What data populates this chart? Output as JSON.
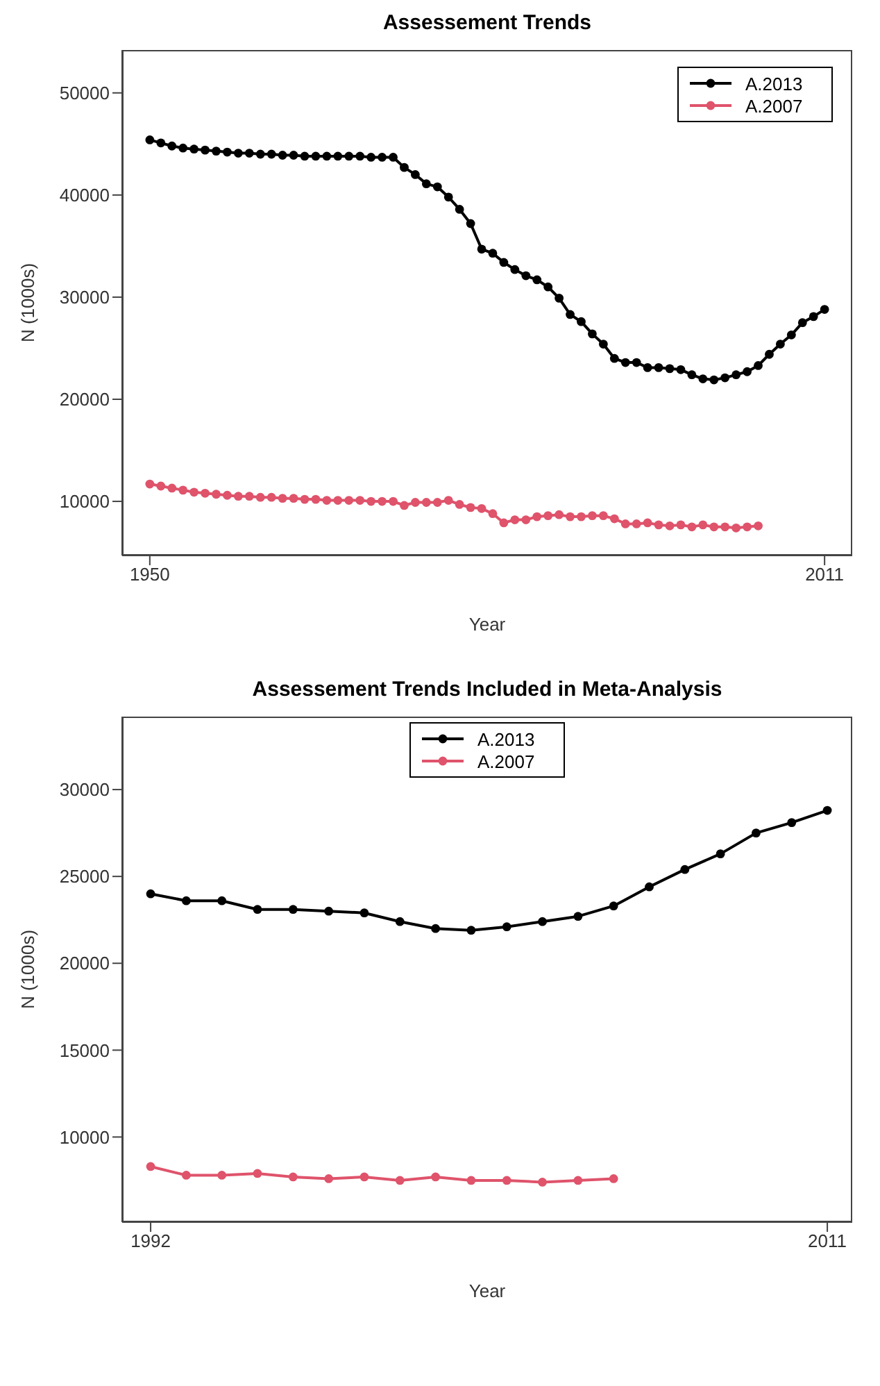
{
  "chart_data": [
    {
      "type": "line",
      "title": "Assessement Trends",
      "xlabel": "Year",
      "ylabel": "N (1000s)",
      "x": [
        1950,
        1951,
        1952,
        1953,
        1954,
        1955,
        1956,
        1957,
        1958,
        1959,
        1960,
        1961,
        1962,
        1963,
        1964,
        1965,
        1966,
        1967,
        1968,
        1969,
        1970,
        1971,
        1972,
        1973,
        1974,
        1975,
        1976,
        1977,
        1978,
        1979,
        1980,
        1981,
        1982,
        1983,
        1984,
        1985,
        1986,
        1987,
        1988,
        1989,
        1990,
        1991,
        1992,
        1993,
        1994,
        1995,
        1996,
        1997,
        1998,
        1999,
        2000,
        2001,
        2002,
        2003,
        2004,
        2005,
        2006,
        2007,
        2008,
        2009,
        2010,
        2011
      ],
      "series": [
        {
          "name": "A.2013",
          "color": "#000000",
          "values": [
            45400,
            45100,
            44800,
            44600,
            44500,
            44400,
            44300,
            44200,
            44100,
            44100,
            44000,
            44000,
            43900,
            43900,
            43800,
            43800,
            43800,
            43800,
            43800,
            43800,
            43700,
            43700,
            43700,
            42700,
            42000,
            41100,
            40800,
            39800,
            38600,
            37200,
            34700,
            34300,
            33400,
            32700,
            32100,
            31700,
            31000,
            29900,
            28300,
            27600,
            26400,
            25400,
            24000,
            23600,
            23600,
            23100,
            23100,
            23000,
            22900,
            22400,
            22000,
            21900,
            22100,
            22400,
            22700,
            23300,
            24400,
            25400,
            26300,
            27500,
            28100,
            28800
          ]
        },
        {
          "name": "A.2007",
          "color": "#df536b",
          "values": [
            11700,
            11500,
            11300,
            11100,
            10900,
            10800,
            10700,
            10600,
            10500,
            10500,
            10400,
            10400,
            10300,
            10300,
            10200,
            10200,
            10100,
            10100,
            10100,
            10100,
            10000,
            10000,
            10000,
            9600,
            9900,
            9900,
            9900,
            10100,
            9700,
            9400,
            9300,
            8800,
            7900,
            8200,
            8200,
            8500,
            8600,
            8700,
            8500,
            8500,
            8600,
            8600,
            8300,
            7800,
            7800,
            7900,
            7700,
            7600,
            7700,
            7500,
            7700,
            7500,
            7500,
            7400,
            7500,
            7600,
            null,
            null,
            null,
            null,
            null,
            null
          ]
        }
      ],
      "xlim": [
        1947.5,
        2013.5
      ],
      "xticks": [
        1950,
        2011
      ],
      "ylim": [
        4700,
        54200
      ],
      "yticks": [
        10000,
        20000,
        30000,
        40000,
        50000
      ],
      "legend": "top right",
      "marker": "circle",
      "line_style": "solid"
    },
    {
      "type": "line",
      "title": "Assessement Trends Included in Meta-Analysis",
      "xlabel": "Year",
      "ylabel": "N (1000s)",
      "x": [
        1992,
        1993,
        1994,
        1995,
        1996,
        1997,
        1998,
        1999,
        2000,
        2001,
        2002,
        2003,
        2004,
        2005,
        2006,
        2007,
        2008,
        2009,
        2010,
        2011
      ],
      "series": [
        {
          "name": "A.2013",
          "color": "#000000",
          "values": [
            24000,
            23600,
            23600,
            23100,
            23100,
            23000,
            22900,
            22400,
            22000,
            21900,
            22100,
            22400,
            22700,
            23300,
            24400,
            25400,
            26300,
            27500,
            28100,
            28800
          ]
        },
        {
          "name": "A.2007",
          "color": "#df536b",
          "values": [
            8300,
            7800,
            7800,
            7900,
            7700,
            7600,
            7700,
            7500,
            7700,
            7500,
            7500,
            7400,
            7500,
            7600,
            null,
            null,
            null,
            null,
            null,
            null
          ]
        }
      ],
      "xlim": [
        1991.2,
        2011.7
      ],
      "xticks": [
        1992,
        2011
      ],
      "ylim": [
        5100,
        34200
      ],
      "yticks": [
        10000,
        15000,
        20000,
        25000,
        30000
      ],
      "legend": "top",
      "marker": "circle",
      "line_style": "solid"
    }
  ]
}
